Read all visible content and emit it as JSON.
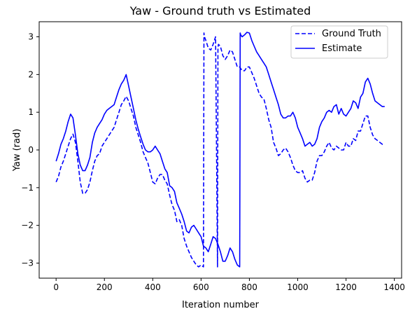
{
  "chart_data": {
    "type": "line",
    "title": "Yaw - Ground truth vs Estimated",
    "xlabel": "Iteration number",
    "ylabel": "Yaw (rad)",
    "xlim": [
      -70,
      1430
    ],
    "ylim": [
      -3.4,
      3.4
    ],
    "xticks": [
      0,
      200,
      400,
      600,
      800,
      1000,
      1200,
      1400
    ],
    "yticks": [
      -3,
      -2,
      -1,
      0,
      1,
      2,
      3
    ],
    "grid": false,
    "legend_position": "upper right",
    "series": [
      {
        "name": "Ground Truth",
        "color": "#0000ff",
        "linestyle": "dashed",
        "x": [
          0,
          10,
          20,
          30,
          40,
          50,
          60,
          70,
          80,
          90,
          100,
          110,
          120,
          130,
          140,
          150,
          160,
          170,
          180,
          190,
          200,
          210,
          220,
          230,
          240,
          250,
          260,
          270,
          280,
          290,
          300,
          310,
          320,
          330,
          340,
          350,
          360,
          370,
          380,
          390,
          400,
          410,
          420,
          430,
          440,
          450,
          460,
          470,
          480,
          490,
          500,
          510,
          520,
          530,
          540,
          550,
          560,
          570,
          580,
          590,
          600,
          610,
          612,
          614,
          620,
          630,
          640,
          650,
          660,
          668,
          670,
          672,
          680,
          690,
          700,
          710,
          720,
          730,
          740,
          750,
          760,
          770,
          780,
          790,
          800,
          810,
          820,
          830,
          840,
          850,
          860,
          870,
          880,
          890,
          900,
          910,
          920,
          930,
          940,
          950,
          960,
          970,
          980,
          990,
          1000,
          1010,
          1020,
          1030,
          1040,
          1050,
          1060,
          1070,
          1080,
          1090,
          1100,
          1110,
          1120,
          1130,
          1140,
          1150,
          1160,
          1170,
          1180,
          1190,
          1200,
          1210,
          1220,
          1230,
          1240,
          1250,
          1260,
          1270,
          1280,
          1290,
          1300,
          1310,
          1320,
          1330,
          1340,
          1350,
          1360
        ],
        "y": [
          -0.85,
          -0.7,
          -0.45,
          -0.3,
          -0.1,
          0.1,
          0.3,
          0.42,
          0.2,
          -0.3,
          -0.85,
          -1.15,
          -1.15,
          -1.05,
          -0.85,
          -0.55,
          -0.3,
          -0.15,
          -0.1,
          0.1,
          0.2,
          0.3,
          0.4,
          0.5,
          0.6,
          0.8,
          1.0,
          1.2,
          1.3,
          1.42,
          1.3,
          1.1,
          0.9,
          0.6,
          0.4,
          0.2,
          -0.05,
          -0.2,
          -0.35,
          -0.6,
          -0.85,
          -0.9,
          -0.75,
          -0.65,
          -0.65,
          -0.8,
          -0.9,
          -1.2,
          -1.45,
          -1.6,
          -1.9,
          -1.85,
          -2.0,
          -2.35,
          -2.55,
          -2.7,
          -2.85,
          -2.95,
          -3.05,
          -3.1,
          -3.05,
          -3.1,
          3.1,
          3.0,
          2.9,
          2.7,
          2.65,
          2.8,
          3.0,
          -3.1,
          2.7,
          2.8,
          2.75,
          2.5,
          2.4,
          2.5,
          2.65,
          2.6,
          2.4,
          2.2,
          2.2,
          2.1,
          2.1,
          2.2,
          2.2,
          2.05,
          1.9,
          1.7,
          1.5,
          1.4,
          1.35,
          1.1,
          0.8,
          0.6,
          0.2,
          0.05,
          -0.15,
          -0.1,
          0.0,
          0.05,
          -0.05,
          -0.2,
          -0.4,
          -0.55,
          -0.6,
          -0.6,
          -0.55,
          -0.75,
          -0.85,
          -0.8,
          -0.8,
          -0.6,
          -0.3,
          -0.15,
          -0.15,
          -0.05,
          0.1,
          0.2,
          0.05,
          0.0,
          0.1,
          0.05,
          0.0,
          0.0,
          0.2,
          0.1,
          0.1,
          0.3,
          0.25,
          0.5,
          0.5,
          0.7,
          0.9,
          0.9,
          0.6,
          0.4,
          0.3,
          0.25,
          0.2,
          0.15,
          0.15
        ]
      },
      {
        "name": "Estimate",
        "color": "#0000ff",
        "linestyle": "solid",
        "x": [
          0,
          10,
          20,
          30,
          40,
          50,
          60,
          70,
          80,
          90,
          100,
          110,
          120,
          130,
          140,
          150,
          160,
          170,
          180,
          190,
          200,
          210,
          220,
          230,
          240,
          250,
          260,
          270,
          280,
          290,
          300,
          310,
          320,
          330,
          340,
          350,
          360,
          370,
          380,
          390,
          400,
          410,
          420,
          430,
          440,
          450,
          460,
          470,
          480,
          490,
          500,
          510,
          520,
          530,
          540,
          550,
          560,
          570,
          580,
          590,
          600,
          610,
          620,
          630,
          640,
          650,
          660,
          670,
          680,
          690,
          700,
          710,
          720,
          730,
          740,
          750,
          760,
          762,
          764,
          770,
          780,
          790,
          800,
          810,
          820,
          830,
          840,
          850,
          860,
          870,
          880,
          890,
          900,
          910,
          920,
          930,
          940,
          950,
          960,
          970,
          980,
          990,
          1000,
          1010,
          1020,
          1030,
          1040,
          1050,
          1060,
          1070,
          1080,
          1090,
          1100,
          1110,
          1120,
          1130,
          1140,
          1150,
          1160,
          1170,
          1180,
          1190,
          1200,
          1210,
          1220,
          1230,
          1240,
          1250,
          1260,
          1270,
          1280,
          1290,
          1300,
          1310,
          1320,
          1330,
          1340,
          1350,
          1360
        ],
        "y": [
          -0.3,
          -0.1,
          0.15,
          0.3,
          0.5,
          0.75,
          0.95,
          0.85,
          0.4,
          -0.1,
          -0.4,
          -0.55,
          -0.55,
          -0.4,
          -0.2,
          0.2,
          0.45,
          0.6,
          0.7,
          0.8,
          0.95,
          1.05,
          1.1,
          1.15,
          1.2,
          1.4,
          1.6,
          1.75,
          1.85,
          2.0,
          1.7,
          1.4,
          1.1,
          0.8,
          0.55,
          0.35,
          0.15,
          0.0,
          -0.05,
          -0.05,
          0.0,
          0.1,
          0.0,
          -0.1,
          -0.3,
          -0.5,
          -0.6,
          -0.95,
          -1.0,
          -1.1,
          -1.4,
          -1.55,
          -1.7,
          -1.9,
          -2.15,
          -2.2,
          -2.05,
          -2.0,
          -2.1,
          -2.2,
          -2.3,
          -2.55,
          -2.6,
          -2.7,
          -2.5,
          -2.3,
          -2.35,
          -2.5,
          -2.7,
          -2.95,
          -2.95,
          -2.8,
          -2.6,
          -2.7,
          -2.9,
          -3.05,
          -3.1,
          3.1,
          3.05,
          3.0,
          3.05,
          3.12,
          3.1,
          2.9,
          2.75,
          2.6,
          2.5,
          2.4,
          2.3,
          2.2,
          2.0,
          1.8,
          1.6,
          1.4,
          1.2,
          0.95,
          0.85,
          0.85,
          0.9,
          0.9,
          1.0,
          0.85,
          0.6,
          0.45,
          0.3,
          0.1,
          0.15,
          0.2,
          0.1,
          0.15,
          0.3,
          0.6,
          0.75,
          0.85,
          1.0,
          1.05,
          1.0,
          1.15,
          1.2,
          0.95,
          1.1,
          0.95,
          0.9,
          1.0,
          1.1,
          1.3,
          1.25,
          1.1,
          1.4,
          1.5,
          1.8,
          1.9,
          1.75,
          1.5,
          1.3,
          1.25,
          1.2,
          1.15,
          1.15
        ]
      }
    ]
  }
}
